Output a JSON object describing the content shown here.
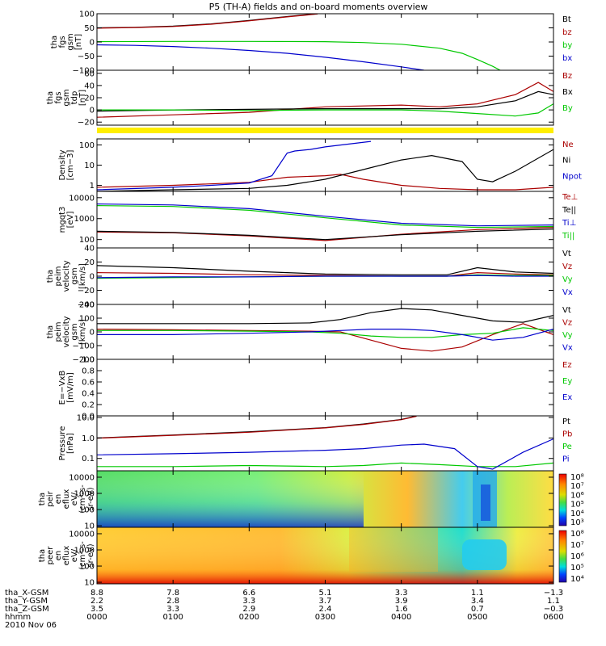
{
  "chart_data": {
    "type": "line",
    "title": "P5 (TH-A) fields and on-board moments overview",
    "x": {
      "ticks": [
        "0000",
        "0100",
        "0200",
        "0300",
        "0400",
        "0500",
        "0600"
      ],
      "range_hours": [
        0,
        6
      ]
    },
    "panels": [
      {
        "id": "fgs-gsm",
        "ylabel": [
          "tha",
          "fgs",
          "gsm",
          "[nT]"
        ],
        "ylim": [
          -100,
          100
        ],
        "yticks": [
          "100",
          "50",
          "0",
          "−50",
          "−100"
        ],
        "ytick_values": [
          100,
          50,
          0,
          -50,
          -100
        ],
        "series": [
          {
            "name": "Bt",
            "color": "#000000",
            "x": [
              0,
              0.5,
              1,
              1.5,
              2,
              2.5,
              2.9
            ],
            "y": [
              50,
              52,
              56,
              64,
              76,
              90,
              100
            ]
          },
          {
            "name": "bz",
            "color": "#aa0000",
            "x": [
              0,
              0.5,
              1,
              1.5,
              2,
              2.5,
              2.9
            ],
            "y": [
              49,
              51,
              55,
              63,
              75,
              89,
              99
            ]
          },
          {
            "name": "by",
            "color": "#00c800",
            "x": [
              0,
              1,
              2,
              3,
              3.5,
              4,
              4.5,
              4.8,
              5,
              5.2,
              5.3
            ],
            "y": [
              1,
              2,
              2,
              1,
              -2,
              -8,
              -22,
              -40,
              -62,
              -86,
              -100
            ]
          },
          {
            "name": "bx",
            "color": "#0000cc",
            "x": [
              0,
              0.5,
              1,
              1.5,
              2,
              2.5,
              3,
              3.5,
              4,
              4.3
            ],
            "y": [
              -10,
              -12,
              -16,
              -22,
              -30,
              -40,
              -54,
              -70,
              -88,
              -100
            ]
          }
        ]
      },
      {
        "id": "fgs-gse",
        "ylabel": [
          "tha",
          "fgs",
          "gsm",
          "tdp",
          "[nT]"
        ],
        "ylim": [
          -25,
          65
        ],
        "yticks": [
          "60",
          "40",
          "20",
          "0",
          "−20"
        ],
        "ytick_values": [
          60,
          40,
          20,
          0,
          -20
        ],
        "series": [
          {
            "name": "Bz",
            "color": "#aa0000",
            "x": [
              0,
              1,
              2,
              3,
              4,
              4.5,
              5,
              5.5,
              5.8,
              6
            ],
            "y": [
              -12,
              -8,
              -4,
              5,
              8,
              5,
              10,
              25,
              45,
              30
            ]
          },
          {
            "name": "Bx",
            "color": "#000000",
            "x": [
              0,
              1,
              2,
              3,
              4,
              4.5,
              5,
              5.5,
              5.8,
              6
            ],
            "y": [
              -2,
              0,
              1,
              2,
              2,
              2,
              5,
              15,
              30,
              25
            ]
          },
          {
            "name": "By",
            "color": "#00c800",
            "x": [
              0,
              1,
              2,
              3,
              4,
              4.5,
              5,
              5.5,
              5.8,
              6
            ],
            "y": [
              0,
              0,
              -1,
              0,
              0,
              -2,
              -6,
              -10,
              -5,
              10
            ]
          }
        ]
      },
      {
        "id": "density",
        "ylabel": [
          "Density",
          "[cm−3]"
        ],
        "ylim_log": [
          0.5,
          200
        ],
        "yticks": [
          "100",
          "10",
          "1"
        ],
        "ytick_values": [
          100,
          10,
          1
        ],
        "series": [
          {
            "name": "Ne",
            "color": "#aa0000",
            "x": [
              0,
              1,
              2,
              2.5,
              3,
              3.2,
              3.5,
              4,
              4.5,
              5,
              5.5,
              6
            ],
            "y": [
              0.8,
              1,
              1.4,
              2.5,
              3,
              3.5,
              2,
              1,
              0.7,
              0.6,
              0.6,
              0.8
            ]
          },
          {
            "name": "Ni",
            "color": "#000000",
            "x": [
              0,
              1,
              2,
              2.5,
              3,
              3.5,
              4,
              4.4,
              4.8,
              5,
              5.2,
              5.5,
              6
            ],
            "y": [
              0.5,
              0.6,
              0.7,
              1,
              2,
              6,
              18,
              30,
              15,
              2,
              1.5,
              5,
              60
            ]
          },
          {
            "name": "Npot",
            "color": "#0000cc",
            "x": [
              0,
              1,
              1.5,
              2,
              2.3,
              2.5,
              2.6,
              2.8,
              3,
              3.3,
              3.6
            ],
            "y": [
              0.6,
              0.8,
              1,
              1.3,
              3,
              40,
              50,
              60,
              80,
              110,
              150
            ]
          }
        ]
      },
      {
        "id": "temperature",
        "ylabel": [
          "mgqt3",
          "[eV]"
        ],
        "ylim_log": [
          40,
          20000
        ],
        "yticks": [
          "10000",
          "1000",
          "100"
        ],
        "ytick_values": [
          10000,
          1000,
          100
        ],
        "series": [
          {
            "name": "Te⊥",
            "color": "#aa0000",
            "x": [
              0,
              1,
              2,
              3,
              4,
              5,
              6
            ],
            "y": [
              230,
              210,
              150,
              90,
              180,
              300,
              380
            ]
          },
          {
            "name": "Te||",
            "color": "#000000",
            "x": [
              0,
              1,
              2,
              3,
              4,
              5,
              6
            ],
            "y": [
              250,
              220,
              160,
              100,
              170,
              250,
              320
            ]
          },
          {
            "name": "Ti⊥",
            "color": "#0000cc",
            "x": [
              0,
              1,
              2,
              3,
              4,
              5,
              6
            ],
            "y": [
              5000,
              4500,
              3000,
              1300,
              600,
              450,
              500
            ]
          },
          {
            "name": "Ti||",
            "color": "#00c800",
            "x": [
              0,
              1,
              2,
              3,
              4,
              5,
              6
            ],
            "y": [
              4200,
              3800,
              2500,
              1100,
              500,
              380,
              420
            ]
          }
        ]
      },
      {
        "id": "peim-velocity-1",
        "ylabel": [
          "tha",
          "peim",
          "velocity",
          "gsm",
          "[km/s]"
        ],
        "ylim": [
          -40,
          40
        ],
        "yticks": [
          "40",
          "20",
          "0",
          "−20",
          "−40"
        ],
        "ytick_values": [
          40,
          20,
          0,
          -20,
          -40
        ],
        "series": [
          {
            "name": "Vt",
            "color": "#000000",
            "x": [
              0,
              1,
              2,
              3,
              4,
              4.6,
              5,
              5.5,
              6
            ],
            "y": [
              15,
              12,
              7,
              3,
              2,
              2,
              12,
              6,
              4
            ]
          },
          {
            "name": "Vz",
            "color": "#aa0000",
            "x": [
              0,
              1,
              2,
              3,
              4,
              4.6,
              5,
              5.5,
              6
            ],
            "y": [
              5,
              4,
              2,
              1,
              0,
              0,
              5,
              3,
              2
            ]
          },
          {
            "name": "Vy",
            "color": "#00c800",
            "x": [
              0,
              1,
              2,
              3,
              4,
              4.6,
              5,
              5.5,
              6
            ],
            "y": [
              -3,
              -2,
              -1,
              0,
              0,
              0,
              2,
              1,
              1
            ]
          },
          {
            "name": "Vx",
            "color": "#0000cc",
            "x": [
              0,
              1,
              2,
              3,
              4,
              4.6,
              5,
              5.5,
              6
            ],
            "y": [
              -2,
              -1,
              -1,
              0,
              0,
              0,
              1,
              0,
              0
            ]
          }
        ]
      },
      {
        "id": "peim-velocity-2",
        "ylabel": [
          "tha",
          "peim",
          "velocity",
          "gsm",
          "[km/s]"
        ],
        "ylim": [
          -200,
          200
        ],
        "yticks": [
          "200",
          "100",
          "0",
          "−100",
          "−200"
        ],
        "ytick_values": [
          200,
          100,
          0,
          -100,
          -200
        ],
        "series": [
          {
            "name": "Vt",
            "color": "#000000",
            "x": [
              0,
              1,
              2,
              2.8,
              3.2,
              3.6,
              4,
              4.4,
              4.8,
              5.2,
              5.6,
              6
            ],
            "y": [
              60,
              60,
              60,
              65,
              90,
              140,
              170,
              160,
              120,
              80,
              70,
              120
            ]
          },
          {
            "name": "Vz",
            "color": "#aa0000",
            "x": [
              0,
              1,
              2,
              2.8,
              3.2,
              3.6,
              4,
              4.4,
              4.8,
              5.2,
              5.6,
              6
            ],
            "y": [
              20,
              15,
              10,
              5,
              0,
              -60,
              -120,
              -140,
              -110,
              -20,
              60,
              -20
            ]
          },
          {
            "name": "Vy",
            "color": "#00c800",
            "x": [
              0,
              1,
              2,
              2.8,
              3.2,
              3.6,
              4,
              4.4,
              4.8,
              5.2,
              5.6,
              6
            ],
            "y": [
              10,
              10,
              5,
              0,
              -10,
              -30,
              -40,
              -40,
              -20,
              -10,
              30,
              10
            ]
          },
          {
            "name": "Vx",
            "color": "#0000cc",
            "x": [
              0,
              1,
              2,
              2.8,
              3.2,
              3.6,
              4,
              4.4,
              4.8,
              5.2,
              5.6,
              6
            ],
            "y": [
              -20,
              -20,
              -10,
              0,
              10,
              20,
              20,
              10,
              -20,
              -60,
              -40,
              20
            ]
          }
        ]
      },
      {
        "id": "e-vxb",
        "ylabel": [
          "E=−VxB",
          "[mV/m]"
        ],
        "ylim": [
          0,
          1
        ],
        "yticks": [
          "1.0",
          "0.8",
          "0.6",
          "0.4",
          "0.2",
          "0.0"
        ],
        "ytick_values": [
          1,
          0.8,
          0.6,
          0.4,
          0.2,
          0
        ],
        "series": [
          {
            "name": "Ez",
            "color": "#aa0000",
            "x": [],
            "y": []
          },
          {
            "name": "Ey",
            "color": "#00c800",
            "x": [],
            "y": []
          },
          {
            "name": "Ex",
            "color": "#0000cc",
            "x": [],
            "y": []
          }
        ]
      },
      {
        "id": "pressure",
        "ylabel": [
          "Pressure",
          "[nPa]"
        ],
        "ylim_log": [
          0.025,
          12
        ],
        "yticks": [
          "10.0",
          "1.0",
          "0.1"
        ],
        "ytick_values": [
          10,
          1,
          0.1
        ],
        "series": [
          {
            "name": "Pt",
            "color": "#000000",
            "x": [
              0,
              1,
              2,
              3,
              3.5,
              4,
              4.2
            ],
            "y": [
              1,
              1.4,
              2,
              3.2,
              4.8,
              8,
              12
            ]
          },
          {
            "name": "Pb",
            "color": "#aa0000",
            "x": [
              0,
              1,
              2,
              3,
              3.5,
              4,
              4.2
            ],
            "y": [
              0.98,
              1.35,
              1.9,
              3.1,
              4.6,
              7.8,
              11.5
            ]
          },
          {
            "name": "Pe",
            "color": "#00c800",
            "x": [
              0,
              1,
              2,
              3,
              3.5,
              4,
              4.5,
              5,
              5.5,
              6
            ],
            "y": [
              0.04,
              0.04,
              0.045,
              0.04,
              0.045,
              0.06,
              0.05,
              0.04,
              0.04,
              0.06
            ]
          },
          {
            "name": "Pi",
            "color": "#0000cc",
            "x": [
              0,
              1,
              2,
              3,
              3.5,
              4,
              4.3,
              4.7,
              5,
              5.2,
              5.6,
              6
            ],
            "y": [
              0.15,
              0.17,
              0.2,
              0.25,
              0.3,
              0.45,
              0.5,
              0.3,
              0.04,
              0.03,
              0.2,
              0.9
            ]
          }
        ]
      },
      {
        "id": "peir-efflux",
        "type": "heatmap",
        "ylabel": [
          "tha",
          "peir",
          "en",
          "eflux",
          "eV/",
          "(cm²-s-",
          "sr-eV)"
        ],
        "ylim_log": [
          8,
          25000
        ],
        "yticks": [
          "10000",
          "1000",
          "100",
          "10"
        ],
        "ytick_values": [
          10000,
          1000,
          100,
          10
        ],
        "colorbar": {
          "ticks": [
            "10⁸",
            "10⁷",
            "10⁶",
            "10⁵",
            "10⁴",
            "10³"
          ]
        }
      },
      {
        "id": "peer-efflux",
        "type": "heatmap",
        "ylabel": [
          "tha",
          "peer",
          "en",
          "eflux",
          "eV/",
          "(cm²-s-",
          "sr-eV)"
        ],
        "ylim_log": [
          8,
          25000
        ],
        "yticks": [
          "10000",
          "1000",
          "100",
          "10"
        ],
        "ytick_values": [
          10000,
          1000,
          100,
          10
        ],
        "colorbar": {
          "ticks": [
            "10⁸",
            "10⁷",
            "10⁶",
            "10⁵",
            "10⁴"
          ]
        }
      }
    ],
    "orbit": {
      "labels": [
        "tha_X-GSM",
        "tha_Y-GSM",
        "tha_Z-GSM",
        "hhmm",
        "2010 Nov 06"
      ],
      "columns": [
        [
          "8.8",
          "2.2",
          "3.5",
          "0000"
        ],
        [
          "7.8",
          "2.8",
          "3.3",
          "0100"
        ],
        [
          "6.6",
          "3.3",
          "2.9",
          "0200"
        ],
        [
          "5.1",
          "3.7",
          "2.4",
          "0300"
        ],
        [
          "3.3",
          "3.9",
          "1.6",
          "0400"
        ],
        [
          "1.1",
          "3.4",
          "0.7",
          "0500"
        ],
        [
          "−1.3",
          "1.1",
          "−0.3",
          "0600"
        ]
      ]
    }
  }
}
